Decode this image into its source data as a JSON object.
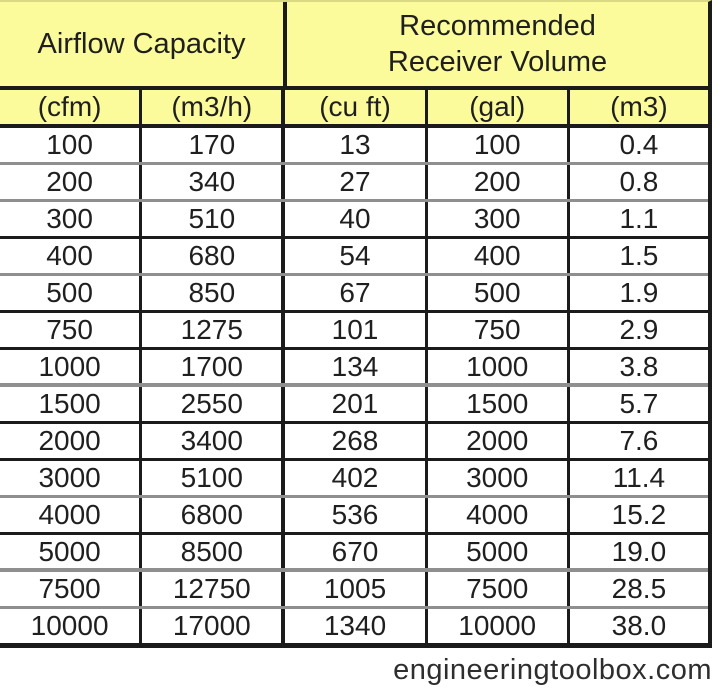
{
  "chart_data": {
    "type": "table",
    "column_groups": [
      {
        "label": "Airflow Capacity",
        "span": 2
      },
      {
        "label": "Recommended Receiver Volume",
        "span": 3
      }
    ],
    "columns": [
      "(cfm)",
      "(m3/h)",
      "(cu ft)",
      "(gal)",
      "(m3)"
    ],
    "rows": [
      [
        "100",
        "170",
        "13",
        "100",
        "0.4"
      ],
      [
        "200",
        "340",
        "27",
        "200",
        "0.8"
      ],
      [
        "300",
        "510",
        "40",
        "300",
        "1.1"
      ],
      [
        "400",
        "680",
        "54",
        "400",
        "1.5"
      ],
      [
        "500",
        "850",
        "67",
        "500",
        "1.9"
      ],
      [
        "750",
        "1275",
        "101",
        "750",
        "2.9"
      ],
      [
        "1000",
        "1700",
        "134",
        "1000",
        "3.8"
      ],
      [
        "1500",
        "2550",
        "201",
        "1500",
        "5.7"
      ],
      [
        "2000",
        "3400",
        "268",
        "2000",
        "7.6"
      ],
      [
        "3000",
        "5100",
        "402",
        "3000",
        "11.4"
      ],
      [
        "4000",
        "6800",
        "536",
        "4000",
        "15.2"
      ],
      [
        "5000",
        "8500",
        "670",
        "5000",
        "19.0"
      ],
      [
        "7500",
        "12750",
        "1005",
        "7500",
        "28.5"
      ],
      [
        "10000",
        "17000",
        "1340",
        "10000",
        "38.0"
      ]
    ]
  },
  "footer": {
    "brand": "engineeringtoolbox.com"
  },
  "colors": {
    "header_bg": "#fbfb9b",
    "line_black": "#1b1b1b",
    "line_gray": "#8f8f8f"
  }
}
